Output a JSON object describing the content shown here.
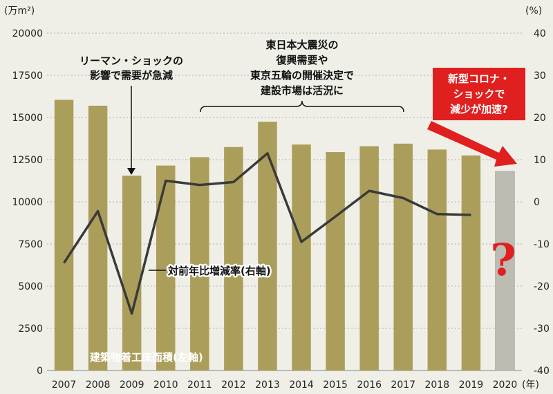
{
  "chart_data": {
    "type": "bar",
    "categories": [
      "2007",
      "2008",
      "2009",
      "2010",
      "2011",
      "2012",
      "2013",
      "2014",
      "2015",
      "2016",
      "2017",
      "2018",
      "2019",
      "2020"
    ],
    "x_unit": "(年)",
    "y_left": {
      "unit": "(万m²)",
      "range": [
        0,
        20000
      ],
      "ticks": [
        0,
        2500,
        5000,
        7500,
        10000,
        12500,
        15000,
        17500,
        20000
      ]
    },
    "y_right": {
      "unit": "(%)",
      "range": [
        -40,
        40
      ],
      "ticks": [
        -40,
        -30,
        -20,
        -10,
        0,
        10,
        20,
        30,
        40
      ]
    },
    "series": [
      {
        "name": "建築物着工床面積(左軸)",
        "type": "bar",
        "axis": "left",
        "values": [
          16050,
          15700,
          11550,
          12150,
          12650,
          13250,
          14750,
          13400,
          12950,
          13300,
          13450,
          13100,
          12750,
          11800
        ]
      },
      {
        "name": "対前年比増減率(右軸)",
        "type": "line",
        "axis": "right",
        "values": [
          -14.5,
          -2.2,
          -26.5,
          5.0,
          4.0,
          4.7,
          11.5,
          -9.5,
          -3.5,
          2.6,
          0.9,
          -2.9,
          -3.1,
          null
        ]
      }
    ],
    "forecast_category": "2020",
    "annotations": {
      "lehman": [
        "リーマン・ショックの",
        "影響で需要が急減"
      ],
      "recovery": [
        "東日本大震災の",
        "復興需要や",
        "東京五輪の開催決定で",
        "建設市場は活況に"
      ],
      "corona": [
        "新型コロナ・",
        "ショックで",
        "減少が加速?"
      ],
      "question_mark": "?"
    },
    "colors": {
      "bar": "#ab9e5a",
      "forecast_bar": "#bcbcb2",
      "line": "#3a3a3a",
      "callout": "#e01f1f",
      "background": "#efefe8",
      "grid": "#9a9a9a"
    },
    "grid": true
  }
}
